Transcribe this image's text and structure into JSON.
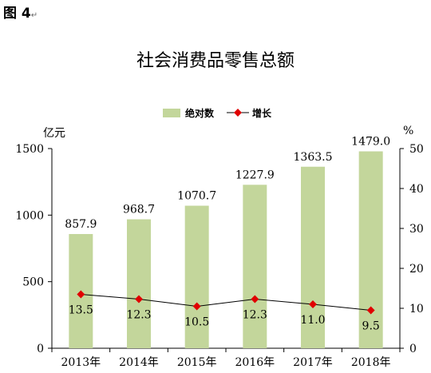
{
  "figure_label": "图 4",
  "figure_mark": "↵",
  "chart_data": {
    "type": "bar",
    "title": "社会消费品零售总额",
    "categories": [
      "2013年",
      "2014年",
      "2015年",
      "2016年",
      "2017年",
      "2018年"
    ],
    "series": [
      {
        "name": "绝对数",
        "type": "bar",
        "axis": "left",
        "color": "#c3d69b",
        "values": [
          857.9,
          968.7,
          1070.7,
          1227.9,
          1363.5,
          1479.0
        ],
        "labels": [
          "857.9",
          "968.7",
          "1070.7",
          "1227.9",
          "1363.5",
          "1479.0"
        ]
      },
      {
        "name": "增长",
        "type": "line",
        "axis": "right",
        "color": "#e00000",
        "values": [
          13.5,
          12.3,
          10.5,
          12.3,
          11.0,
          9.5
        ],
        "labels": [
          "13.5",
          "12.3",
          "10.5",
          "12.3",
          "11.0",
          "9.5"
        ]
      }
    ],
    "y_left": {
      "unit": "亿元",
      "range": [
        0,
        1500
      ],
      "ticks": [
        "0",
        "500",
        "1000",
        "1500"
      ]
    },
    "y_right": {
      "unit": "%",
      "range": [
        0,
        50
      ],
      "ticks": [
        "0",
        "10",
        "20",
        "30",
        "40",
        "50"
      ]
    },
    "legend_position": "top",
    "grid": false
  }
}
